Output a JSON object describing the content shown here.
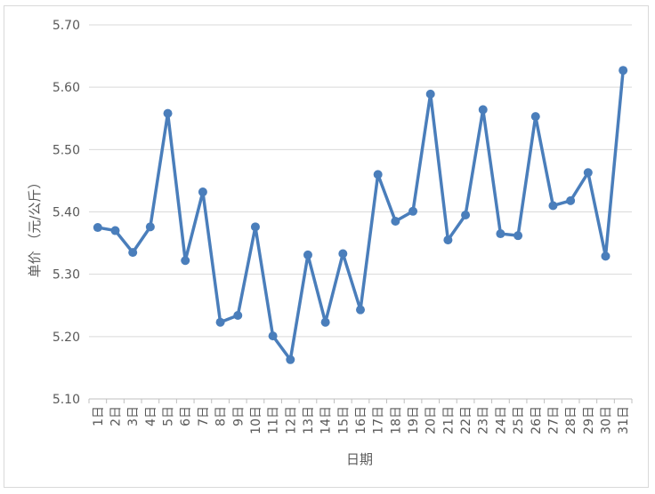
{
  "chart_data": {
    "type": "line",
    "title": "",
    "xlabel": "日期",
    "ylabel": "单价 （元/公斤）",
    "ylim": [
      5.1,
      5.7
    ],
    "yticks": [
      "5.10",
      "5.20",
      "5.30",
      "5.40",
      "5.50",
      "5.60",
      "5.70"
    ],
    "grid": true,
    "legend": "none",
    "categories": [
      "1日",
      "2日",
      "3日",
      "4日",
      "5日",
      "6日",
      "7日",
      "8日",
      "9日",
      "10日",
      "11日",
      "12日",
      "13日",
      "14日",
      "15日",
      "16日",
      "17日",
      "18日",
      "19日",
      "20日",
      "21日",
      "22日",
      "23日",
      "24日",
      "25日",
      "26日",
      "27日",
      "28日",
      "29日",
      "30日",
      "31日"
    ],
    "series": [
      {
        "values": [
          5.375,
          5.37,
          5.335,
          5.376,
          5.558,
          5.322,
          5.432,
          5.223,
          5.234,
          5.376,
          5.201,
          5.163,
          5.331,
          5.223,
          5.333,
          5.243,
          5.46,
          5.385,
          5.401,
          5.589,
          5.355,
          5.395,
          5.564,
          5.365,
          5.362,
          5.553,
          5.41,
          5.418,
          5.463,
          5.329,
          5.627
        ],
        "color": "#4a7ebb"
      }
    ]
  },
  "colors": {
    "series": "#4a7ebb",
    "grid": "#d9d9d9",
    "text": "#595959"
  }
}
